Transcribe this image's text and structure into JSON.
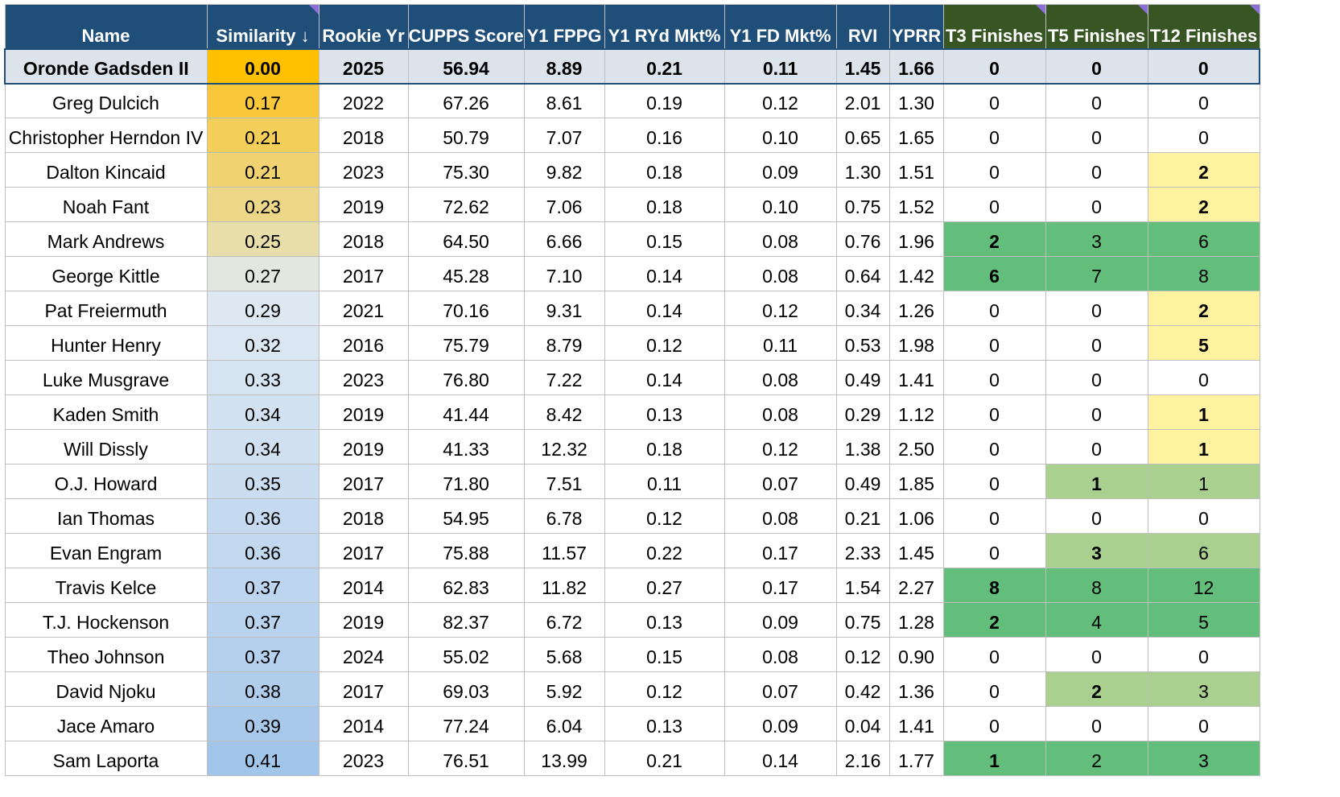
{
  "headers": [
    {
      "label": "Name",
      "group": "blue",
      "flag": false
    },
    {
      "label": "Similarity ↓",
      "group": "blue",
      "flag": true
    },
    {
      "label": "Rookie Yr",
      "group": "blue",
      "flag": false
    },
    {
      "label": "CUPPS Score",
      "group": "blue",
      "flag": false
    },
    {
      "label": "Y1 FPPG",
      "group": "blue",
      "flag": false
    },
    {
      "label": "Y1 RYd Mkt%",
      "group": "blue",
      "flag": false
    },
    {
      "label": "Y1 FD Mkt%",
      "group": "blue",
      "flag": false
    },
    {
      "label": "RVI",
      "group": "blue",
      "flag": false
    },
    {
      "label": "YPRR",
      "group": "blue",
      "flag": false
    },
    {
      "label": "T3 Finishes",
      "group": "green",
      "flag": true
    },
    {
      "label": "T5 Finishes",
      "group": "green",
      "flag": true
    },
    {
      "label": "T12 Finishes",
      "group": "green",
      "flag": true
    }
  ],
  "colors": {
    "header_blue": "#1f4e79",
    "header_green": "#375623",
    "focus_row": "#dde3ea",
    "sim_focus": "#ffc000",
    "finish_dark_green": "#63be7b",
    "finish_light_green": "#a9d08e",
    "finish_yellow": "#fff2a0"
  },
  "rows": [
    {
      "cells": [
        "Oronde Gadsden II",
        "0.00",
        "2025",
        "56.94",
        "8.89",
        "0.21",
        "0.11",
        "1.45",
        "1.66",
        "0",
        "0",
        "0"
      ],
      "focus": true,
      "sim_bg": "#ffc000",
      "fin_bg": [
        "",
        "",
        ""
      ],
      "fin_bold": [
        true,
        true,
        true
      ]
    },
    {
      "cells": [
        "Greg Dulcich",
        "0.17",
        "2022",
        "67.26",
        "8.61",
        "0.19",
        "0.12",
        "2.01",
        "1.30",
        "0",
        "0",
        "0"
      ],
      "sim_bg": "#f8c83a",
      "fin_bg": [
        "",
        "",
        ""
      ],
      "fin_bold": [
        false,
        false,
        false
      ]
    },
    {
      "cells": [
        "Christopher Herndon IV",
        "0.21",
        "2018",
        "50.79",
        "7.07",
        "0.16",
        "0.10",
        "0.65",
        "1.65",
        "0",
        "0",
        "0"
      ],
      "sim_bg": "#f3cf5a",
      "fin_bg": [
        "",
        "",
        ""
      ],
      "fin_bold": [
        false,
        false,
        false
      ]
    },
    {
      "cells": [
        "Dalton Kincaid",
        "0.21",
        "2023",
        "75.30",
        "9.82",
        "0.18",
        "0.09",
        "1.30",
        "1.51",
        "0",
        "0",
        "2"
      ],
      "sim_bg": "#f0d370",
      "fin_bg": [
        "",
        "",
        "#fff2a0"
      ],
      "fin_bold": [
        false,
        false,
        true
      ]
    },
    {
      "cells": [
        "Noah Fant",
        "0.23",
        "2019",
        "72.62",
        "7.06",
        "0.18",
        "0.10",
        "0.75",
        "1.52",
        "0",
        "0",
        "2"
      ],
      "sim_bg": "#ecd788",
      "fin_bg": [
        "",
        "",
        "#fff2a0"
      ],
      "fin_bold": [
        false,
        false,
        true
      ]
    },
    {
      "cells": [
        "Mark Andrews",
        "0.25",
        "2018",
        "64.50",
        "6.66",
        "0.15",
        "0.08",
        "0.76",
        "1.96",
        "2",
        "3",
        "6"
      ],
      "sim_bg": "#e8deaa",
      "fin_bg": [
        "#63be7b",
        "#63be7b",
        "#63be7b"
      ],
      "fin_bold": [
        true,
        false,
        false
      ]
    },
    {
      "cells": [
        "George Kittle",
        "0.27",
        "2017",
        "45.28",
        "7.10",
        "0.14",
        "0.08",
        "0.64",
        "1.42",
        "6",
        "7",
        "8"
      ],
      "sim_bg": "#e4e6e0",
      "fin_bg": [
        "#63be7b",
        "#63be7b",
        "#63be7b"
      ],
      "fin_bold": [
        true,
        false,
        false
      ]
    },
    {
      "cells": [
        "Pat Freiermuth",
        "0.29",
        "2021",
        "70.16",
        "9.31",
        "0.14",
        "0.12",
        "0.34",
        "1.26",
        "0",
        "0",
        "2"
      ],
      "sim_bg": "#dde8f2",
      "fin_bg": [
        "",
        "",
        "#fff2a0"
      ],
      "fin_bold": [
        false,
        false,
        true
      ]
    },
    {
      "cells": [
        "Hunter Henry",
        "0.32",
        "2016",
        "75.79",
        "8.79",
        "0.12",
        "0.11",
        "0.53",
        "1.98",
        "0",
        "0",
        "5"
      ],
      "sim_bg": "#dae6f1",
      "fin_bg": [
        "",
        "",
        "#fff2a0"
      ],
      "fin_bold": [
        false,
        false,
        true
      ]
    },
    {
      "cells": [
        "Luke Musgrave",
        "0.33",
        "2023",
        "76.80",
        "7.22",
        "0.14",
        "0.08",
        "0.49",
        "1.41",
        "0",
        "0",
        "0"
      ],
      "sim_bg": "#d6e4f1",
      "fin_bg": [
        "",
        "",
        ""
      ],
      "fin_bold": [
        false,
        false,
        false
      ]
    },
    {
      "cells": [
        "Kaden Smith",
        "0.34",
        "2019",
        "41.44",
        "8.42",
        "0.13",
        "0.08",
        "0.29",
        "1.12",
        "0",
        "0",
        "1"
      ],
      "sim_bg": "#d3e2f1",
      "fin_bg": [
        "",
        "",
        "#fff2a0"
      ],
      "fin_bold": [
        false,
        false,
        true
      ]
    },
    {
      "cells": [
        "Will Dissly",
        "0.34",
        "2019",
        "41.33",
        "12.32",
        "0.18",
        "0.12",
        "1.38",
        "2.50",
        "0",
        "0",
        "1"
      ],
      "sim_bg": "#d0e0f1",
      "fin_bg": [
        "",
        "",
        "#fff2a0"
      ],
      "fin_bold": [
        false,
        false,
        true
      ]
    },
    {
      "cells": [
        "O.J. Howard",
        "0.35",
        "2017",
        "71.80",
        "7.51",
        "0.11",
        "0.07",
        "0.49",
        "1.85",
        "0",
        "1",
        "1"
      ],
      "sim_bg": "#cbddf0",
      "fin_bg": [
        "",
        "#a9d08e",
        "#a9d08e"
      ],
      "fin_bold": [
        false,
        true,
        false
      ]
    },
    {
      "cells": [
        "Ian Thomas",
        "0.36",
        "2018",
        "54.95",
        "6.78",
        "0.12",
        "0.08",
        "0.21",
        "1.06",
        "0",
        "0",
        "0"
      ],
      "sim_bg": "#c5daf0",
      "fin_bg": [
        "",
        "",
        ""
      ],
      "fin_bold": [
        false,
        false,
        false
      ]
    },
    {
      "cells": [
        "Evan Engram",
        "0.36",
        "2017",
        "75.88",
        "11.57",
        "0.22",
        "0.17",
        "2.33",
        "1.45",
        "0",
        "3",
        "6"
      ],
      "sim_bg": "#c1d8ef",
      "fin_bg": [
        "",
        "#a9d08e",
        "#a9d08e"
      ],
      "fin_bold": [
        false,
        true,
        false
      ]
    },
    {
      "cells": [
        "Travis Kelce",
        "0.37",
        "2014",
        "62.83",
        "11.82",
        "0.27",
        "0.17",
        "1.54",
        "2.27",
        "8",
        "8",
        "12"
      ],
      "sim_bg": "#bdd5ef",
      "fin_bg": [
        "#63be7b",
        "#63be7b",
        "#63be7b"
      ],
      "fin_bold": [
        true,
        false,
        false
      ]
    },
    {
      "cells": [
        "T.J. Hockenson",
        "0.37",
        "2019",
        "82.37",
        "6.72",
        "0.13",
        "0.09",
        "0.75",
        "1.28",
        "2",
        "4",
        "5"
      ],
      "sim_bg": "#b9d3ee",
      "fin_bg": [
        "#63be7b",
        "#63be7b",
        "#63be7b"
      ],
      "fin_bold": [
        true,
        false,
        false
      ]
    },
    {
      "cells": [
        "Theo Johnson",
        "0.37",
        "2024",
        "55.02",
        "5.68",
        "0.15",
        "0.08",
        "0.12",
        "0.90",
        "0",
        "0",
        "0"
      ],
      "sim_bg": "#b5d0ed",
      "fin_bg": [
        "",
        "",
        ""
      ],
      "fin_bold": [
        false,
        false,
        false
      ]
    },
    {
      "cells": [
        "David Njoku",
        "0.38",
        "2017",
        "69.03",
        "5.92",
        "0.12",
        "0.07",
        "0.42",
        "1.36",
        "0",
        "2",
        "3"
      ],
      "sim_bg": "#b0cdec",
      "fin_bg": [
        "",
        "#a9d08e",
        "#a9d08e"
      ],
      "fin_bold": [
        false,
        true,
        false
      ]
    },
    {
      "cells": [
        "Jace Amaro",
        "0.39",
        "2014",
        "77.24",
        "6.04",
        "0.13",
        "0.09",
        "0.04",
        "1.41",
        "0",
        "0",
        "0"
      ],
      "sim_bg": "#a9c9eb",
      "fin_bg": [
        "",
        "",
        ""
      ],
      "fin_bold": [
        false,
        false,
        false
      ]
    },
    {
      "cells": [
        "Sam Laporta",
        "0.41",
        "2023",
        "76.51",
        "13.99",
        "0.21",
        "0.14",
        "2.16",
        "1.77",
        "1",
        "2",
        "3"
      ],
      "sim_bg": "#a2c5ea",
      "fin_bg": [
        "#63be7b",
        "#63be7b",
        "#63be7b"
      ],
      "fin_bold": [
        true,
        false,
        false
      ]
    }
  ]
}
